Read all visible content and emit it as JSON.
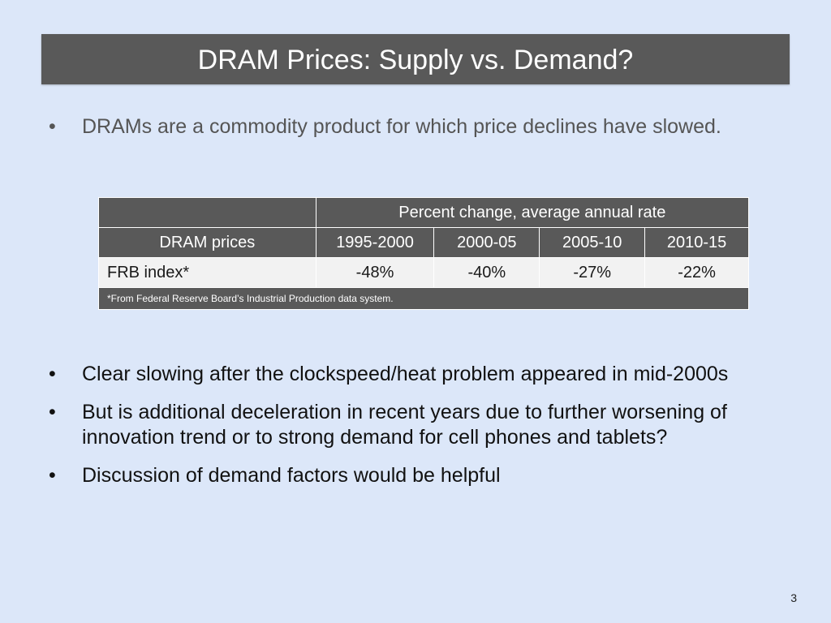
{
  "slide": {
    "title": "DRAM Prices: Supply vs. Demand?",
    "page_number": "3"
  },
  "intro_bullets": [
    "DRAMs are a commodity product for which price declines have slowed."
  ],
  "table": {
    "group_header": "Percent change, average annual rate",
    "row_header": "DRAM prices",
    "columns": [
      "1995-2000",
      "2000-05",
      "2005-10",
      "2010-15"
    ],
    "rows": [
      {
        "label": "FRB index*",
        "values": [
          "-48%",
          "-40%",
          "-27%",
          "-22%"
        ]
      }
    ],
    "footnote": "*From Federal Reserve Board’s Industrial Production data system."
  },
  "bullets": [
    "Clear slowing after the clockspeed/heat problem appeared in mid-2000s",
    "But is additional deceleration in recent years due to further worsening of innovation trend or to strong demand for cell phones and tablets?",
    "Discussion of demand factors would be helpful"
  ],
  "bullet_glyph": "•"
}
